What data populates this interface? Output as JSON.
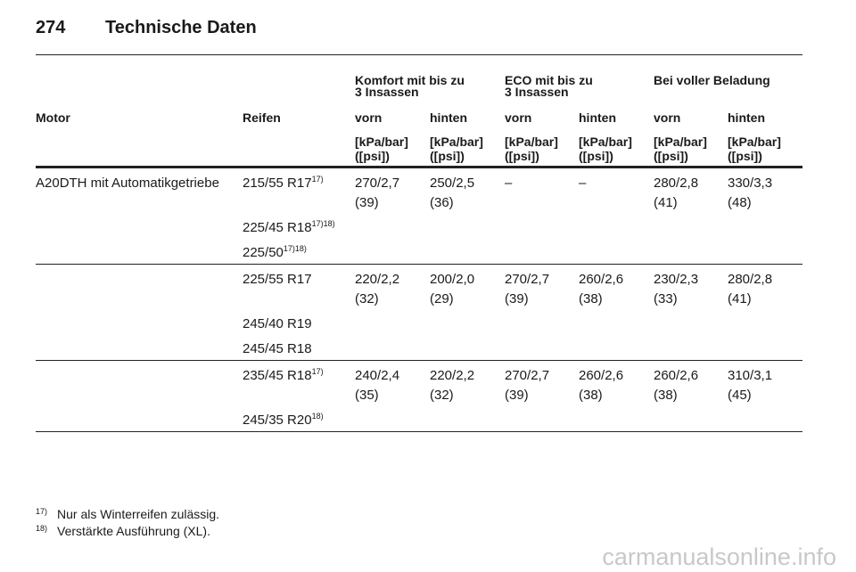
{
  "header": {
    "page": "274",
    "title": "Technische Daten"
  },
  "table": {
    "group_headers": [
      [
        "Komfort mit bis zu",
        "3 Insassen"
      ],
      [
        "ECO mit bis zu",
        "3 Insassen"
      ],
      [
        "Bei voller Beladung"
      ]
    ],
    "columns": [
      "Motor",
      "Reifen",
      "vorn",
      "hinten",
      "vorn",
      "hinten",
      "vorn",
      "hinten"
    ],
    "units": [
      "[kPa/bar]",
      "([psi])"
    ],
    "groups": [
      {
        "motor": "A20DTH mit Automatikgetriebe",
        "rows": [
          {
            "tire": "215/55 R17",
            "note": "17)",
            "values": [
              [
                "270/2,7",
                "(39)"
              ],
              [
                "250/2,5",
                "(36)"
              ],
              [
                "–"
              ],
              [
                "–"
              ],
              [
                "280/2,8",
                "(41)"
              ],
              [
                "330/3,3",
                "(48)"
              ]
            ]
          },
          {
            "tire": "225/45 R18",
            "note": "17)18)"
          },
          {
            "tire": "225/50",
            "note": "17)18)"
          }
        ]
      },
      {
        "rows": [
          {
            "tire": "225/55 R17",
            "values": [
              [
                "220/2,2",
                "(32)"
              ],
              [
                "200/2,0",
                "(29)"
              ],
              [
                "270/2,7",
                "(39)"
              ],
              [
                "260/2,6",
                "(38)"
              ],
              [
                "230/2,3",
                "(33)"
              ],
              [
                "280/2,8",
                "(41)"
              ]
            ]
          },
          {
            "tire": "245/40 R19"
          },
          {
            "tire": "245/45 R18"
          }
        ]
      },
      {
        "rows": [
          {
            "tire": "235/45 R18",
            "note": "17)",
            "values": [
              [
                "240/2,4",
                "(35)"
              ],
              [
                "220/2,2",
                "(32)"
              ],
              [
                "270/2,7",
                "(39)"
              ],
              [
                "260/2,6",
                "(38)"
              ],
              [
                "260/2,6",
                "(38)"
              ],
              [
                "310/3,1",
                "(45)"
              ]
            ]
          },
          {
            "tire": "245/35 R20",
            "note": "18)"
          }
        ]
      }
    ]
  },
  "footnotes": [
    {
      "mark": "17)",
      "text": "Nur als Winterreifen zulässig."
    },
    {
      "mark": "18)",
      "text": "Verstärkte Ausführung (XL)."
    }
  ],
  "watermark": "carmanualsonline.info"
}
